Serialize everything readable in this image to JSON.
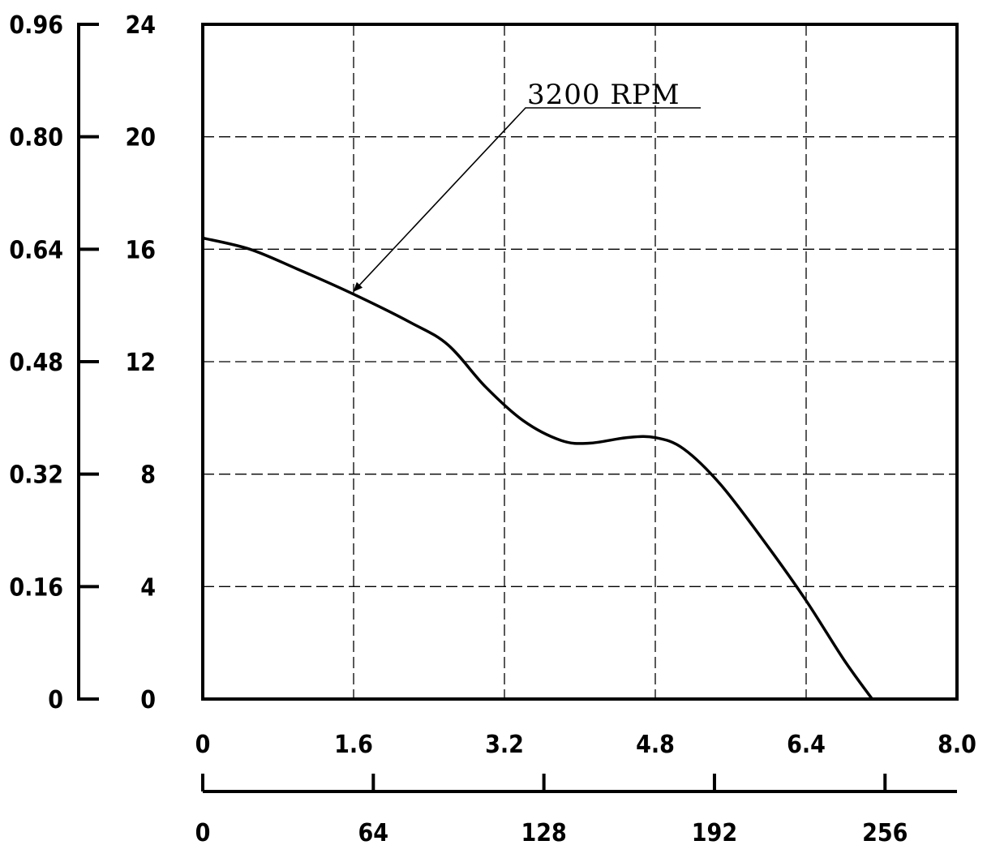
{
  "chart_data": {
    "type": "line",
    "x_axis_primary": {
      "ticks": [
        "0",
        "1.6",
        "3.2",
        "4.8",
        "6.4",
        "8.0"
      ],
      "range": [
        0,
        8.0
      ]
    },
    "x_axis_secondary": {
      "ticks": [
        "0",
        "64",
        "128",
        "192",
        "256"
      ],
      "range": [
        0,
        283
      ]
    },
    "y_axis_primary": {
      "ticks": [
        "0",
        "4",
        "8",
        "12",
        "16",
        "20",
        "24"
      ],
      "range": [
        0,
        24
      ]
    },
    "y_axis_secondary": {
      "ticks": [
        "0",
        "0.16",
        "0.32",
        "0.48",
        "0.64",
        "0.80",
        "0.96"
      ],
      "range": [
        0,
        0.96
      ]
    },
    "grid": true,
    "series": [
      {
        "name": "3200 RPM",
        "x": [
          0,
          0.5,
          1.0,
          1.6,
          2.2,
          2.6,
          3.0,
          3.4,
          3.8,
          4.1,
          4.5,
          4.8,
          5.1,
          5.5,
          6.0,
          6.4,
          6.8,
          7.1
        ],
        "y": [
          16.4,
          16.0,
          15.3,
          14.4,
          13.4,
          12.6,
          11.1,
          9.9,
          9.2,
          9.1,
          9.3,
          9.3,
          8.9,
          7.6,
          5.4,
          3.5,
          1.4,
          0
        ]
      }
    ],
    "annotations": [
      {
        "text": "3200 RPM",
        "points_to": {
          "x": 1.6,
          "y": 14.5
        }
      }
    ]
  }
}
